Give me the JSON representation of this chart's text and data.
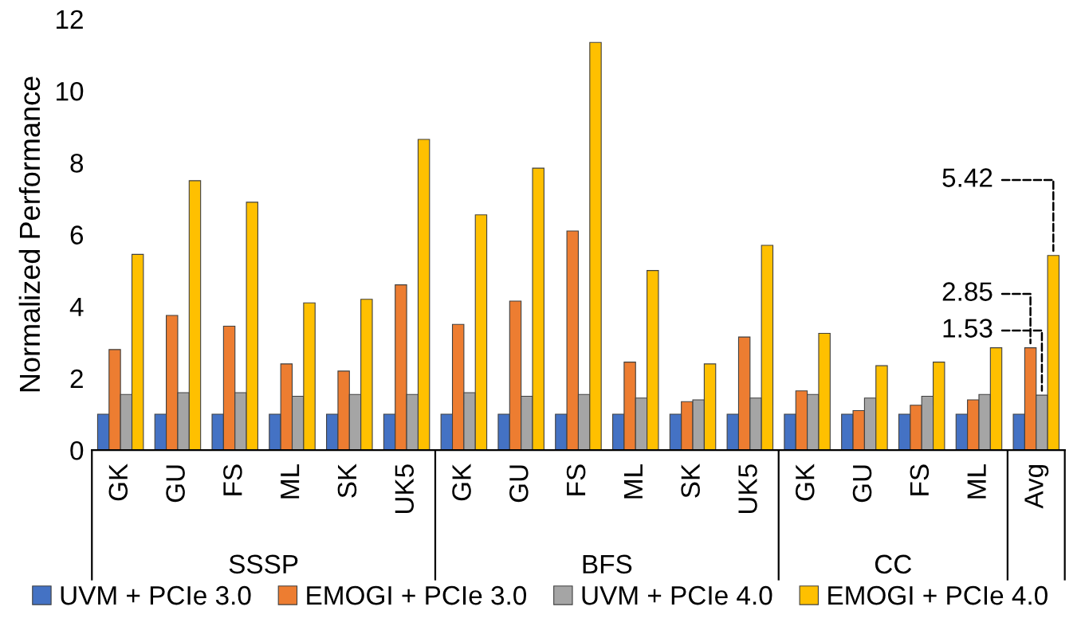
{
  "chart_data": {
    "type": "bar",
    "ylabel": "Normalized Performance",
    "categories": [
      "GK",
      "GU",
      "FS",
      "ML",
      "SK",
      "UK5",
      "GK",
      "GU",
      "FS",
      "ML",
      "SK",
      "UK5",
      "GK",
      "GU",
      "FS",
      "ML",
      "Avg"
    ],
    "series": [
      {
        "name": "UVM + PCIe 3.0",
        "color": "#4472c4",
        "values": [
          1,
          1,
          1,
          1,
          1,
          1,
          1,
          1,
          1,
          1,
          1,
          1,
          1,
          1,
          1,
          1,
          1
        ]
      },
      {
        "name": "EMOGI + PCIe 3.0",
        "color": "#ed7d31",
        "values": [
          2.8,
          3.75,
          3.45,
          2.4,
          2.2,
          4.6,
          3.5,
          4.15,
          6.1,
          2.45,
          1.35,
          3.15,
          1.65,
          1.1,
          1.25,
          1.4,
          2.85
        ],
        "value_labels": [
          null,
          null,
          null,
          null,
          null,
          null,
          null,
          null,
          null,
          null,
          null,
          null,
          null,
          null,
          null,
          null,
          "2.85"
        ]
      },
      {
        "name": "UVM + PCIe 4.0",
        "color": "#a5a5a5",
        "values": [
          1.55,
          1.6,
          1.6,
          1.5,
          1.55,
          1.55,
          1.6,
          1.5,
          1.55,
          1.45,
          1.4,
          1.45,
          1.55,
          1.45,
          1.5,
          1.55,
          1.53
        ],
        "value_labels": [
          null,
          null,
          null,
          null,
          null,
          null,
          null,
          null,
          null,
          null,
          null,
          null,
          null,
          null,
          null,
          null,
          "1.53"
        ]
      },
      {
        "name": "EMOGI + PCIe 4.0",
        "color": "#ffc000",
        "values": [
          5.45,
          7.5,
          6.9,
          4.1,
          4.2,
          8.65,
          6.55,
          7.85,
          11.35,
          5.0,
          2.4,
          5.7,
          3.25,
          2.35,
          2.45,
          2.85,
          5.42
        ],
        "value_labels": [
          null,
          null,
          null,
          null,
          null,
          null,
          null,
          null,
          null,
          null,
          null,
          null,
          null,
          null,
          null,
          null,
          "5.42"
        ]
      }
    ],
    "annotations": [
      "SSSP",
      "BFS",
      "CC"
    ],
    "ylim": [
      0,
      12
    ],
    "yticks": [
      0,
      2,
      4,
      6,
      8,
      10,
      12
    ],
    "grid": false,
    "legend": "bottom"
  }
}
